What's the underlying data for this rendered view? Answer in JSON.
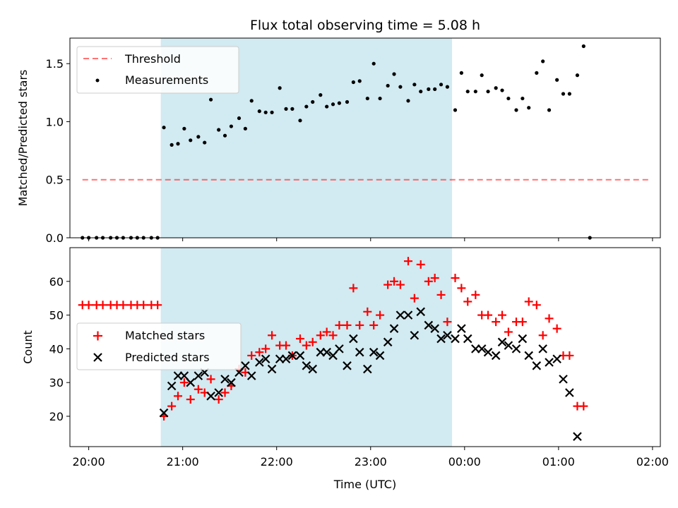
{
  "title": "Flux total observing time = 5.08 h",
  "colors": {
    "shade": "#add8e6",
    "threshold": "#ff0000",
    "measurement": "#000000",
    "matched": "#ff0000",
    "predicted": "#000000"
  },
  "chart_data": [
    {
      "type": "scatter",
      "panel": "top",
      "title": "Flux total observing time = 5.08 h",
      "xlabel": "",
      "ylabel": "Matched/Predicted stars",
      "xlim": [
        "19:48",
        "02:05"
      ],
      "ylim": [
        0,
        1.72
      ],
      "yticks": [
        "0.0",
        "0.5",
        "1.0",
        "1.5"
      ],
      "shaded_interval": [
        "20:46",
        "23:52"
      ],
      "legend": {
        "position": "upper-left",
        "entries": [
          "Threshold",
          "Measurements"
        ]
      },
      "threshold": {
        "name": "Threshold",
        "y": 0.5,
        "x_range": [
          "19:56",
          "01:58"
        ],
        "style": "dashed"
      },
      "series": [
        {
          "name": "Measurements",
          "marker": "dot",
          "points": [
            [
              "19:56",
              0
            ],
            [
              "20:00",
              0
            ],
            [
              "20:05",
              0
            ],
            [
              "20:09",
              0
            ],
            [
              "20:14",
              0
            ],
            [
              "20:18",
              0
            ],
            [
              "20:22",
              0
            ],
            [
              "20:27",
              0
            ],
            [
              "20:31",
              0
            ],
            [
              "20:35",
              0
            ],
            [
              "20:40",
              0
            ],
            [
              "20:44",
              0
            ],
            [
              "20:48",
              0.95
            ],
            [
              "20:53",
              0.8
            ],
            [
              "20:57",
              0.81
            ],
            [
              "21:01",
              0.94
            ],
            [
              "21:05",
              0.84
            ],
            [
              "21:10",
              0.87
            ],
            [
              "21:14",
              0.82
            ],
            [
              "21:18",
              1.19
            ],
            [
              "21:23",
              0.93
            ],
            [
              "21:27",
              0.88
            ],
            [
              "21:31",
              0.96
            ],
            [
              "21:36",
              1.03
            ],
            [
              "21:40",
              0.94
            ],
            [
              "21:44",
              1.18
            ],
            [
              "21:49",
              1.09
            ],
            [
              "21:53",
              1.08
            ],
            [
              "21:57",
              1.08
            ],
            [
              "22:02",
              1.29
            ],
            [
              "22:06",
              1.11
            ],
            [
              "22:10",
              1.11
            ],
            [
              "22:15",
              1.01
            ],
            [
              "22:19",
              1.13
            ],
            [
              "22:23",
              1.17
            ],
            [
              "22:28",
              1.23
            ],
            [
              "22:32",
              1.13
            ],
            [
              "22:36",
              1.15
            ],
            [
              "22:40",
              1.16
            ],
            [
              "22:45",
              1.17
            ],
            [
              "22:49",
              1.34
            ],
            [
              "22:53",
              1.35
            ],
            [
              "22:58",
              1.2
            ],
            [
              "23:02",
              1.5
            ],
            [
              "23:06",
              1.2
            ],
            [
              "23:11",
              1.31
            ],
            [
              "23:15",
              1.41
            ],
            [
              "23:19",
              1.3
            ],
            [
              "23:24",
              1.18
            ],
            [
              "23:28",
              1.32
            ],
            [
              "23:32",
              1.26
            ],
            [
              "23:37",
              1.28
            ],
            [
              "23:41",
              1.28
            ],
            [
              "23:45",
              1.32
            ],
            [
              "23:49",
              1.3
            ],
            [
              "23:54",
              1.1
            ],
            [
              "23:58",
              1.42
            ],
            [
              "00:02",
              1.26
            ],
            [
              "00:07",
              1.26
            ],
            [
              "00:11",
              1.4
            ],
            [
              "00:15",
              1.26
            ],
            [
              "00:20",
              1.29
            ],
            [
              "00:24",
              1.27
            ],
            [
              "00:28",
              1.2
            ],
            [
              "00:33",
              1.1
            ],
            [
              "00:37",
              1.2
            ],
            [
              "00:41",
              1.12
            ],
            [
              "00:46",
              1.42
            ],
            [
              "00:50",
              1.52
            ],
            [
              "00:54",
              1.1
            ],
            [
              "00:59",
              1.36
            ],
            [
              "01:03",
              1.24
            ],
            [
              "01:07",
              1.24
            ],
            [
              "01:12",
              1.4
            ],
            [
              "01:16",
              1.65
            ],
            [
              "01:20",
              0
            ]
          ]
        }
      ]
    },
    {
      "type": "scatter",
      "panel": "bottom",
      "xlabel": "Time (UTC)",
      "ylabel": "Count",
      "xlim": [
        "19:48",
        "02:05"
      ],
      "ylim": [
        11,
        70
      ],
      "yticks": [
        "20",
        "30",
        "40",
        "50",
        "60"
      ],
      "xticks": [
        "20:00",
        "21:00",
        "22:00",
        "23:00",
        "00:00",
        "01:00",
        "02:00"
      ],
      "shaded_interval": [
        "20:46",
        "23:52"
      ],
      "legend": {
        "position": "center-left",
        "entries": [
          "Matched stars",
          "Predicted stars"
        ]
      },
      "series": [
        {
          "name": "Matched stars",
          "marker": "plus",
          "points": [
            [
              "19:56",
              53
            ],
            [
              "20:00",
              53
            ],
            [
              "20:05",
              53
            ],
            [
              "20:09",
              53
            ],
            [
              "20:14",
              53
            ],
            [
              "20:18",
              53
            ],
            [
              "20:22",
              53
            ],
            [
              "20:27",
              53
            ],
            [
              "20:31",
              53
            ],
            [
              "20:35",
              53
            ],
            [
              "20:40",
              53
            ],
            [
              "20:44",
              53
            ],
            [
              "20:48",
              20
            ],
            [
              "20:53",
              23
            ],
            [
              "20:57",
              26
            ],
            [
              "21:01",
              30
            ],
            [
              "21:05",
              25
            ],
            [
              "21:10",
              28
            ],
            [
              "21:14",
              27
            ],
            [
              "21:18",
              31
            ],
            [
              "21:23",
              25
            ],
            [
              "21:27",
              27
            ],
            [
              "21:31",
              29
            ],
            [
              "21:36",
              34
            ],
            [
              "21:40",
              33
            ],
            [
              "21:44",
              38
            ],
            [
              "21:49",
              39
            ],
            [
              "21:53",
              40
            ],
            [
              "21:57",
              44
            ],
            [
              "22:02",
              41
            ],
            [
              "22:06",
              41
            ],
            [
              "22:10",
              38
            ],
            [
              "22:15",
              43
            ],
            [
              "22:19",
              41
            ],
            [
              "22:23",
              42
            ],
            [
              "22:28",
              44
            ],
            [
              "22:32",
              45
            ],
            [
              "22:36",
              44
            ],
            [
              "22:40",
              47
            ],
            [
              "22:45",
              47
            ],
            [
              "22:49",
              58
            ],
            [
              "22:53",
              47
            ],
            [
              "22:58",
              51
            ],
            [
              "23:02",
              47
            ],
            [
              "23:06",
              50
            ],
            [
              "23:11",
              59
            ],
            [
              "23:15",
              60
            ],
            [
              "23:19",
              59
            ],
            [
              "23:24",
              66
            ],
            [
              "23:28",
              55
            ],
            [
              "23:32",
              65
            ],
            [
              "23:37",
              60
            ],
            [
              "23:41",
              61
            ],
            [
              "23:45",
              56
            ],
            [
              "23:49",
              48
            ],
            [
              "23:54",
              61
            ],
            [
              "23:58",
              58
            ],
            [
              "00:02",
              54
            ],
            [
              "00:07",
              56
            ],
            [
              "00:11",
              50
            ],
            [
              "00:15",
              50
            ],
            [
              "00:20",
              48
            ],
            [
              "00:24",
              50
            ],
            [
              "00:28",
              45
            ],
            [
              "00:33",
              48
            ],
            [
              "00:37",
              48
            ],
            [
              "00:41",
              54
            ],
            [
              "00:46",
              53
            ],
            [
              "00:50",
              44
            ],
            [
              "00:54",
              49
            ],
            [
              "00:59",
              46
            ],
            [
              "01:03",
              38
            ],
            [
              "01:07",
              38
            ],
            [
              "01:12",
              23
            ],
            [
              "01:16",
              23
            ]
          ]
        },
        {
          "name": "Predicted stars",
          "marker": "x",
          "points": [
            [
              "20:48",
              21
            ],
            [
              "20:53",
              29
            ],
            [
              "20:57",
              32
            ],
            [
              "21:01",
              32
            ],
            [
              "21:05",
              30
            ],
            [
              "21:10",
              32
            ],
            [
              "21:14",
              33
            ],
            [
              "21:18",
              26
            ],
            [
              "21:23",
              27
            ],
            [
              "21:27",
              31
            ],
            [
              "21:31",
              30
            ],
            [
              "21:36",
              33
            ],
            [
              "21:40",
              35
            ],
            [
              "21:44",
              32
            ],
            [
              "21:49",
              36
            ],
            [
              "21:53",
              37
            ],
            [
              "21:57",
              34
            ],
            [
              "22:02",
              37
            ],
            [
              "22:06",
              37
            ],
            [
              "22:10",
              38
            ],
            [
              "22:15",
              38
            ],
            [
              "22:19",
              35
            ],
            [
              "22:23",
              34
            ],
            [
              "22:28",
              39
            ],
            [
              "22:32",
              39
            ],
            [
              "22:36",
              38
            ],
            [
              "22:40",
              40
            ],
            [
              "22:45",
              35
            ],
            [
              "22:49",
              43
            ],
            [
              "22:53",
              39
            ],
            [
              "22:58",
              34
            ],
            [
              "23:02",
              39
            ],
            [
              "23:06",
              38
            ],
            [
              "23:11",
              42
            ],
            [
              "23:15",
              46
            ],
            [
              "23:19",
              50
            ],
            [
              "23:24",
              50
            ],
            [
              "23:28",
              44
            ],
            [
              "23:32",
              51
            ],
            [
              "23:37",
              47
            ],
            [
              "23:41",
              46
            ],
            [
              "23:45",
              43
            ],
            [
              "23:49",
              44
            ],
            [
              "23:54",
              43
            ],
            [
              "23:58",
              46
            ],
            [
              "00:02",
              43
            ],
            [
              "00:07",
              40
            ],
            [
              "00:11",
              40
            ],
            [
              "00:15",
              39
            ],
            [
              "00:20",
              38
            ],
            [
              "00:24",
              42
            ],
            [
              "00:28",
              41
            ],
            [
              "00:33",
              40
            ],
            [
              "00:37",
              43
            ],
            [
              "00:41",
              38
            ],
            [
              "00:46",
              35
            ],
            [
              "00:50",
              40
            ],
            [
              "00:54",
              36
            ],
            [
              "00:59",
              37
            ],
            [
              "01:03",
              31
            ],
            [
              "01:07",
              27
            ],
            [
              "01:12",
              14
            ]
          ]
        }
      ]
    }
  ]
}
